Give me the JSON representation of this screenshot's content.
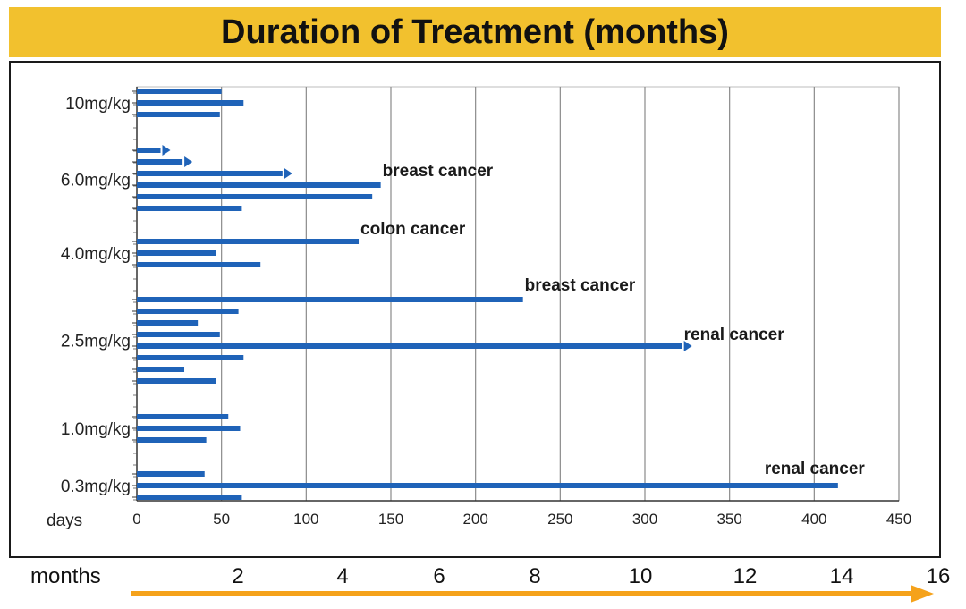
{
  "title": "Duration of Treatment (months)",
  "chart_data": {
    "type": "bar",
    "orientation": "horizontal",
    "title": "Duration of Treatment (months)",
    "xlabel": "days",
    "xlim": [
      0,
      450
    ],
    "x_ticks": [
      0,
      50,
      100,
      150,
      200,
      250,
      300,
      350,
      400,
      450
    ],
    "grid": true,
    "secondary_axis": {
      "label": "months",
      "ticks": [
        2,
        4,
        6,
        8,
        10,
        12,
        14,
        16
      ]
    },
    "groups": [
      {
        "label": "10mg/kg",
        "bars": [
          {
            "days": 50,
            "ongoing": false
          },
          {
            "days": 63,
            "ongoing": false
          },
          {
            "days": 49,
            "ongoing": false
          }
        ]
      },
      {
        "label": "6.0mg/kg",
        "bars": [
          {
            "days": 14,
            "ongoing": true
          },
          {
            "days": 27,
            "ongoing": true
          },
          {
            "days": 86,
            "ongoing": true
          },
          {
            "days": 144,
            "ongoing": false,
            "annotation": "breast cancer"
          },
          {
            "days": 139,
            "ongoing": false
          },
          {
            "days": 62,
            "ongoing": false
          }
        ]
      },
      {
        "label": "4.0mg/kg",
        "bars": [
          {
            "days": 131,
            "ongoing": false,
            "annotation": "colon cancer"
          },
          {
            "days": 47,
            "ongoing": false
          },
          {
            "days": 73,
            "ongoing": false
          }
        ]
      },
      {
        "label": "2.5mg/kg",
        "bars": [
          {
            "days": 228,
            "ongoing": false,
            "annotation": "breast cancer"
          },
          {
            "days": 60,
            "ongoing": false
          },
          {
            "days": 36,
            "ongoing": false
          },
          {
            "days": 49,
            "ongoing": false
          },
          {
            "days": 322,
            "ongoing": true,
            "annotation": "renal cancer"
          },
          {
            "days": 63,
            "ongoing": false
          },
          {
            "days": 28,
            "ongoing": false
          },
          {
            "days": 47,
            "ongoing": false
          }
        ]
      },
      {
        "label": "1.0mg/kg",
        "bars": [
          {
            "days": 54,
            "ongoing": false
          },
          {
            "days": 61,
            "ongoing": false
          },
          {
            "days": 41,
            "ongoing": false
          }
        ]
      },
      {
        "label": "0.3mg/kg",
        "bars": [
          {
            "days": 40,
            "ongoing": false
          },
          {
            "days": 414,
            "ongoing": false,
            "annotation": "renal cancer"
          },
          {
            "days": 62,
            "ongoing": false
          }
        ]
      }
    ]
  },
  "colors": {
    "bar": "#1f63b8",
    "title_band": "#f2c12e",
    "arrow": "#f5a21b",
    "grid": "#8a8a8a"
  }
}
